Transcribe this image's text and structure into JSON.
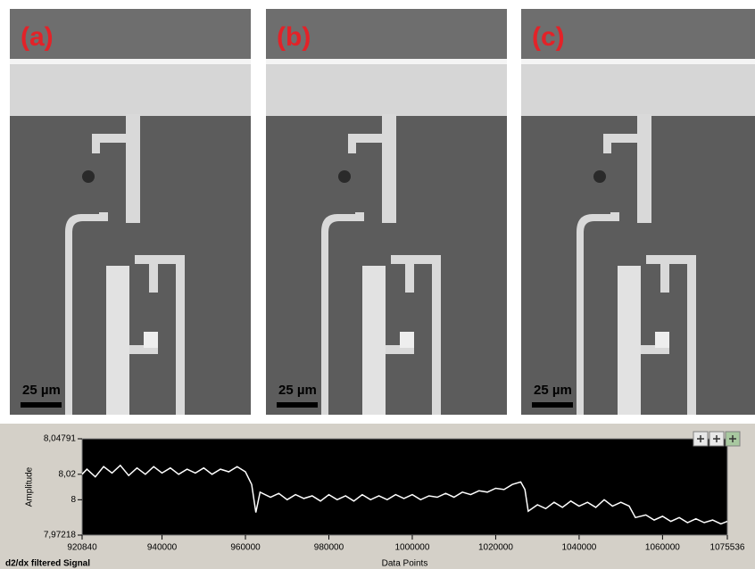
{
  "panels": [
    {
      "label": "(a)",
      "scale_bar": "25 µm"
    },
    {
      "label": "(b)",
      "scale_bar": "25 µm"
    },
    {
      "label": "(c)",
      "scale_bar": "25 µm"
    }
  ],
  "chart_data": {
    "type": "line",
    "title": "d2/dx filtered Signal",
    "xlabel": "Data Points",
    "ylabel": "Amplitude",
    "color": "#ffffff",
    "xlim": [
      920840,
      1075536
    ],
    "xticks": [
      920840,
      940000,
      960000,
      980000,
      1000000,
      1020000,
      1040000,
      1060000,
      1075536
    ],
    "ylim": [
      7.97218,
      8.04791
    ],
    "yticks": [
      {
        "value": 8.04791,
        "label": "8,04791"
      },
      {
        "value": 8.02,
        "label": "8,02"
      },
      8,
      {
        "value": 7.97218,
        "label": "7,97218"
      }
    ],
    "x": [
      920840,
      922000,
      924000,
      926000,
      928000,
      930000,
      932000,
      934000,
      936000,
      938000,
      940000,
      942000,
      944000,
      946000,
      948000,
      950000,
      952000,
      954000,
      956000,
      958000,
      960000,
      961500,
      962500,
      963500,
      966000,
      968000,
      970000,
      972000,
      974000,
      976000,
      978000,
      980000,
      982000,
      984000,
      986000,
      988000,
      990000,
      992000,
      994000,
      996000,
      998000,
      1000000,
      1002000,
      1004000,
      1006000,
      1008000,
      1010000,
      1012000,
      1014000,
      1016000,
      1018000,
      1020000,
      1022000,
      1024000,
      1026000,
      1027000,
      1027800,
      1030000,
      1032000,
      1034000,
      1036000,
      1038000,
      1040000,
      1042000,
      1044000,
      1046000,
      1048000,
      1050000,
      1052000,
      1053500,
      1056000,
      1058000,
      1060000,
      1062000,
      1064000,
      1066000,
      1068000,
      1070000,
      1072000,
      1074000,
      1075536
    ],
    "values": [
      8.02,
      8.024,
      8.018,
      8.026,
      8.021,
      8.027,
      8.019,
      8.025,
      8.02,
      8.026,
      8.021,
      8.025,
      8.02,
      8.024,
      8.021,
      8.025,
      8.02,
      8.024,
      8.022,
      8.026,
      8.022,
      8.012,
      7.99,
      8.006,
      8.002,
      8.005,
      8.0,
      8.004,
      8.001,
      8.003,
      7.999,
      8.004,
      8.0,
      8.003,
      7.999,
      8.004,
      8.0,
      8.003,
      8.0,
      8.004,
      8.001,
      8.004,
      8.0,
      8.003,
      8.002,
      8.005,
      8.002,
      8.006,
      8.004,
      8.007,
      8.006,
      8.009,
      8.008,
      8.012,
      8.014,
      8.008,
      7.991,
      7.996,
      7.993,
      7.998,
      7.994,
      7.999,
      7.995,
      7.998,
      7.994,
      8.0,
      7.995,
      7.998,
      7.995,
      7.986,
      7.988,
      7.984,
      7.987,
      7.983,
      7.986,
      7.982,
      7.985,
      7.982,
      7.984,
      7.981,
      7.983
    ]
  }
}
